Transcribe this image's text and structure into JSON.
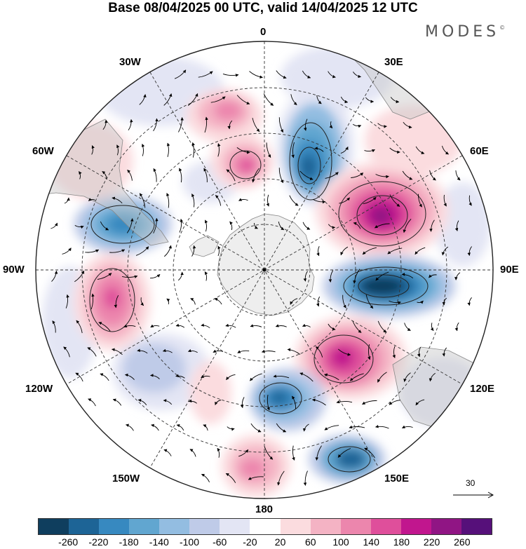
{
  "title": "Base 08/04/2025 00 UTC, valid 14/04/2025 12 UTC",
  "brand": "MODES",
  "brand_mark": "©",
  "longitude_labels": {
    "n0": "0",
    "e30": "30E",
    "e60": "60E",
    "e90": "90E",
    "e120": "120E",
    "e150": "150E",
    "s180": "180",
    "w150": "150W",
    "w120": "120W",
    "w90": "90W",
    "w60": "60W",
    "w30": "30W"
  },
  "reference_vector": {
    "value": "30"
  },
  "colorbar": {
    "colors": [
      "#0f3e5e",
      "#1d6496",
      "#3789c0",
      "#61a6d0",
      "#93bde1",
      "#bfcbe8",
      "#e3e5f4",
      "#ffffff",
      "#fbdcdf",
      "#f4b3c4",
      "#ec86ad",
      "#df4f9b",
      "#c1168e",
      "#901584",
      "#56107a"
    ],
    "tick_labels": [
      "-260",
      "-220",
      "-180",
      "-140",
      "-100",
      "-60",
      "-20",
      "20",
      "60",
      "100",
      "140",
      "180",
      "220",
      "260"
    ]
  },
  "anomaly_centers": [
    {
      "lon_offset": 0.0,
      "value": 0
    }
  ]
}
